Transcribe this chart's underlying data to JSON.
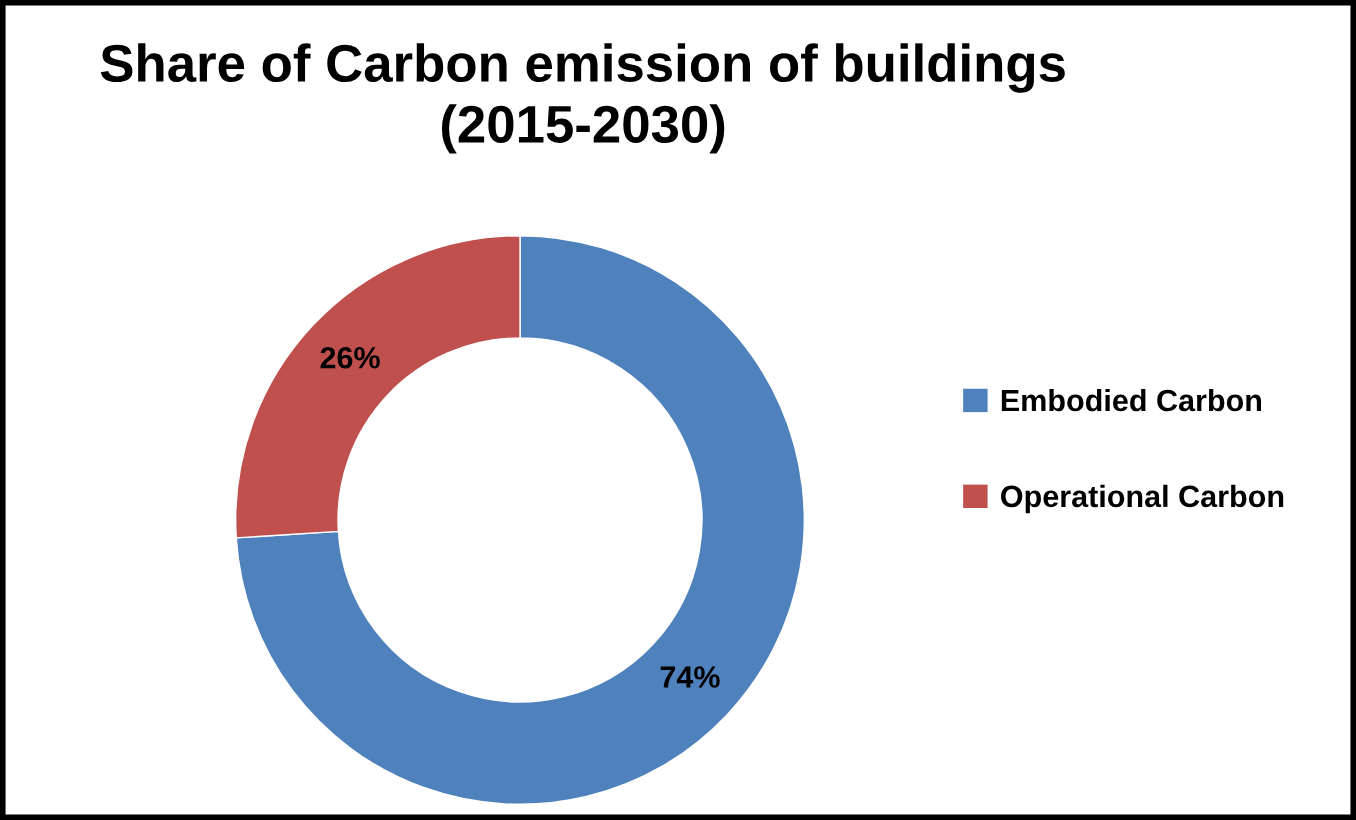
{
  "chart_data": {
    "type": "donut",
    "title": "Share of Carbon emission of buildings\n(2015-2030)",
    "categories": [
      "Embodied Carbon",
      "Operational Carbon"
    ],
    "values": [
      74,
      26
    ],
    "colors": [
      "#4f81bd",
      "#c0504d"
    ],
    "value_labels": [
      "74%",
      "26%"
    ],
    "legend": "right"
  }
}
